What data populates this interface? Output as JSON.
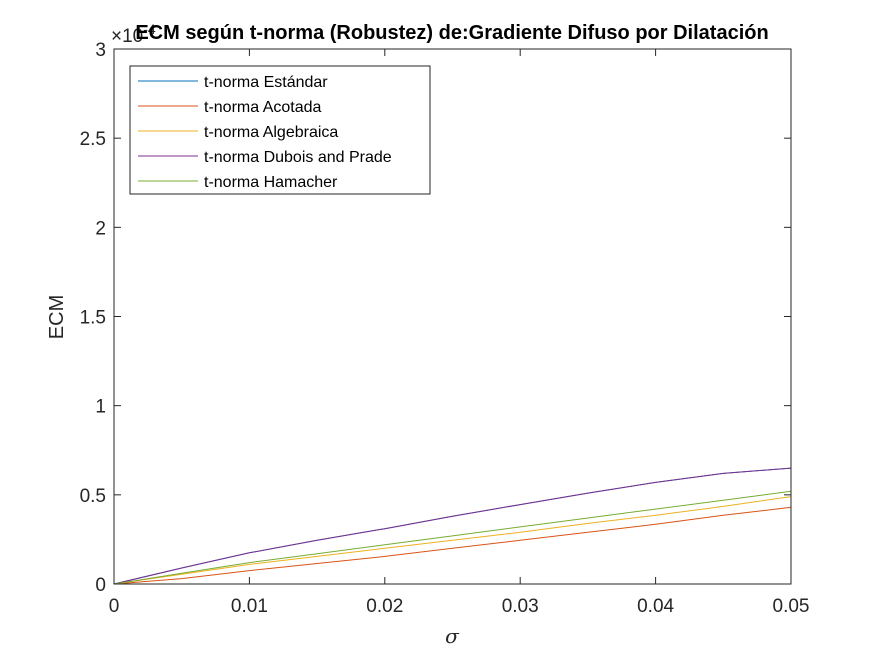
{
  "chart_data": {
    "type": "line",
    "title": "ECM según t-norma (Robustez) de:Gradiente Difuso por Dilatación",
    "xlabel": "σ",
    "ylabel": "ECM",
    "y_exponent_label": "×10",
    "y_exponent_power": "-4",
    "xlim": [
      0,
      0.05
    ],
    "ylim": [
      0,
      3
    ],
    "x_ticks": [
      "0",
      "0.01",
      "0.02",
      "0.03",
      "0.04",
      "0.05"
    ],
    "y_ticks": [
      "0",
      "0.5",
      "1",
      "1.5",
      "2",
      "2.5",
      "3"
    ],
    "x": [
      0,
      0.005,
      0.01,
      0.015,
      0.02,
      0.025,
      0.03,
      0.035,
      0.04,
      0.045,
      0.05
    ],
    "series": [
      {
        "name": "t-norma Estándar",
        "color": "#0072BD",
        "values": [
          0,
          0.09,
          0.175,
          0.245,
          0.31,
          0.38,
          0.445,
          0.51,
          0.57,
          0.62,
          0.65
        ]
      },
      {
        "name": "t-norma Acotada",
        "color": "#D95319",
        "values": [
          0,
          0.03,
          0.075,
          0.115,
          0.155,
          0.2,
          0.245,
          0.29,
          0.335,
          0.385,
          0.43
        ]
      },
      {
        "name": "t-norma Algebraica",
        "color": "#EDB120",
        "values": [
          0,
          0.055,
          0.11,
          0.155,
          0.2,
          0.245,
          0.29,
          0.34,
          0.385,
          0.435,
          0.49
        ]
      },
      {
        "name": "t-norma Dubois and Prade",
        "color": "#7E2F8E",
        "values": [
          0,
          0.09,
          0.175,
          0.245,
          0.31,
          0.38,
          0.445,
          0.51,
          0.57,
          0.62,
          0.65
        ]
      },
      {
        "name": "t-norma Hamacher",
        "color": "#77AC30",
        "values": [
          0,
          0.06,
          0.12,
          0.17,
          0.22,
          0.27,
          0.32,
          0.37,
          0.42,
          0.47,
          0.52
        ]
      }
    ],
    "legend_position": "top-left",
    "grid": false
  }
}
